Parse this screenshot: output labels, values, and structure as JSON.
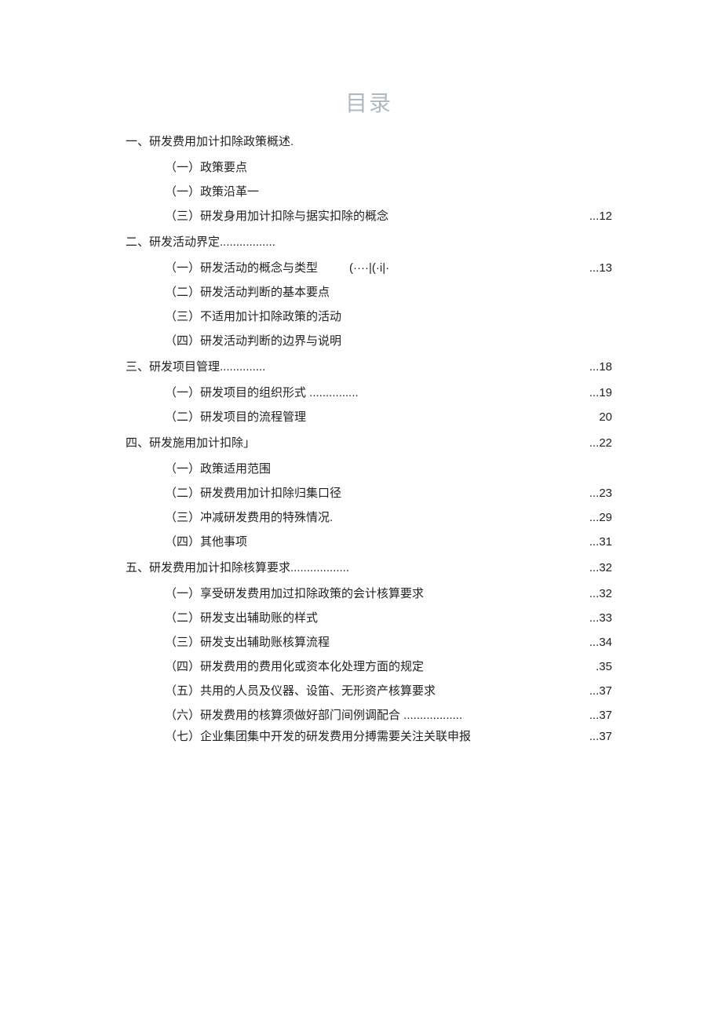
{
  "title": "目录",
  "entries": [
    {
      "level": 1,
      "text": "一、研发费用加计扣除政策概述.",
      "page": ""
    },
    {
      "level": 2,
      "text": "（一）政策要点",
      "page": ""
    },
    {
      "level": 2,
      "text": "（一）政策沿革一",
      "page": ""
    },
    {
      "level": 2,
      "text": "（三）研发身用加计扣除与据实扣除的概念",
      "page": "...12"
    },
    {
      "level": 1,
      "text": "二、研发活动界定.................",
      "page": ""
    },
    {
      "level": 2,
      "text": "（一）研发活动的概念与类型",
      "extra": "(····|(·i|·",
      "page": "...13"
    },
    {
      "level": 2,
      "text": "（二）研发活动判断的基本要点",
      "page": ""
    },
    {
      "level": 2,
      "text": "（三）不适用加计扣除政策的活动",
      "page": ""
    },
    {
      "level": 2,
      "text": "（四）研发活动判断的边界与说明",
      "page": ""
    },
    {
      "level": 1,
      "text": "三、研发项目管理..............",
      "page": "...18"
    },
    {
      "level": 2,
      "text": "（一）研发项目的组织形式 ...............",
      "page": "...19"
    },
    {
      "level": 2,
      "text": "（二）研发项目的流程管理",
      "page": "20"
    },
    {
      "level": 1,
      "text": "四、研发施用加计扣除」",
      "page": "...22"
    },
    {
      "level": 2,
      "text": "（一）政策适用范围",
      "page": ""
    },
    {
      "level": 2,
      "text": "（二）研发费用加计扣除归集口径",
      "page": "...23"
    },
    {
      "level": 2,
      "text": "（三）冲减研发费用的特殊情况.",
      "page": "...29"
    },
    {
      "level": 2,
      "text": "（四）其他事项",
      "page": "...31"
    },
    {
      "level": 1,
      "text": "五、研发费用加计扣除核算要求..................",
      "page": "...32"
    },
    {
      "level": 2,
      "text": "（一）享受研发费用加过扣除政策的会计核算要求",
      "page": "...32"
    },
    {
      "level": 2,
      "text": "（二）研发支出辅助账的样式",
      "page": "...33"
    },
    {
      "level": 2,
      "text": "（三）研发支出辅助账核算流程",
      "page": "...34"
    },
    {
      "level": 2,
      "text": "（四）研发费用的费用化或资本化处理方面的规定",
      "page": ".35"
    },
    {
      "level": 2,
      "text": "（五）共用的人员及仪器、设笛、无形资产核算要求",
      "page": "...37"
    },
    {
      "level": 2,
      "tight": true,
      "text": "（六）研发费用的核算须做好部门间例调配合 ..................",
      "page": "...37"
    },
    {
      "level": 2,
      "tight": true,
      "text": "（七）企业集团集中开发的研发费用分搏需要关注关联申报",
      "page": "...37"
    }
  ]
}
